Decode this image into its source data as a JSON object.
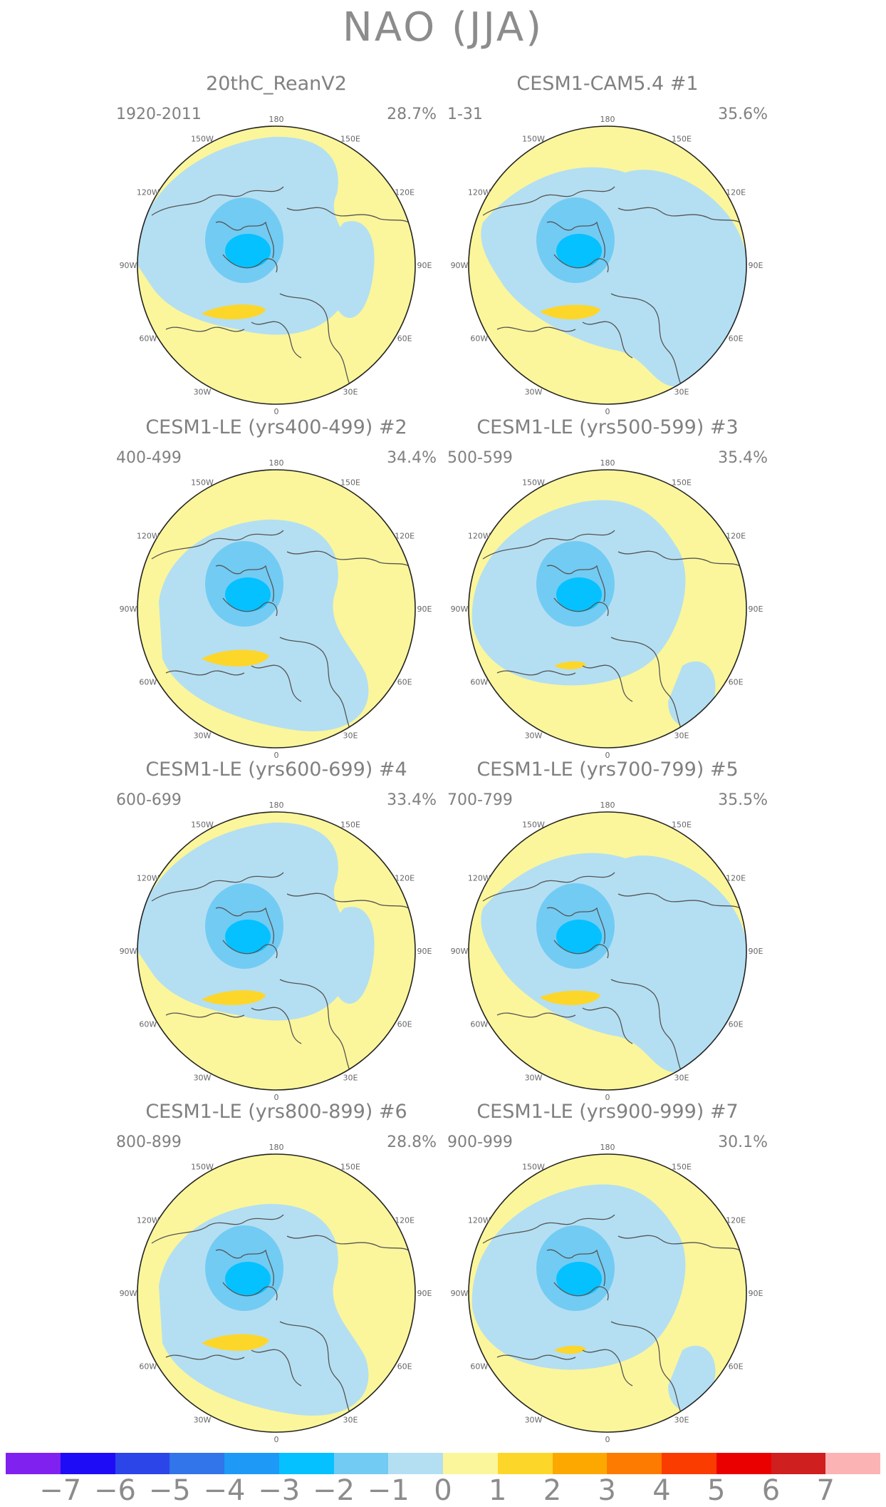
{
  "title": "NAO (JJA)",
  "longitude_labels": [
    "180",
    "150E",
    "120E",
    "90E",
    "60E",
    "30E",
    "0",
    "30W",
    "60W",
    "90W",
    "120W",
    "150W"
  ],
  "panels": [
    {
      "title": "20thC_ReanV2",
      "period": "1920-2011",
      "percent": "28.7%",
      "variant": 0
    },
    {
      "title": "CESM1-CAM5.4         #1",
      "period": "1-31",
      "percent": "35.6%",
      "variant": 1
    },
    {
      "title": "CESM1-LE (yrs400-499) #2",
      "period": "400-499",
      "percent": "34.4%",
      "variant": 2
    },
    {
      "title": "CESM1-LE (yrs500-599) #3",
      "period": "500-599",
      "percent": "35.4%",
      "variant": 3
    },
    {
      "title": "CESM1-LE (yrs600-699) #4",
      "period": "600-699",
      "percent": "33.4%",
      "variant": 0
    },
    {
      "title": "CESM1-LE (yrs700-799) #5",
      "period": "700-799",
      "percent": "35.5%",
      "variant": 1
    },
    {
      "title": "CESM1-LE (yrs800-899) #6",
      "period": "800-899",
      "percent": "28.8%",
      "variant": 2
    },
    {
      "title": "CESM1-LE (yrs900-999) #7",
      "period": "900-999",
      "percent": "30.1%",
      "variant": 3
    }
  ],
  "colorbar": {
    "colors": [
      "#8021f0",
      "#1e0cf6",
      "#2c45e9",
      "#3274ea",
      "#1e9af6",
      "#05c1ff",
      "#72cbf3",
      "#b4dff2",
      "#fbf69b",
      "#fdd62a",
      "#fca800",
      "#fc7b00",
      "#fa3c00",
      "#eb0000",
      "#cf1f1f",
      "#fcb3b3"
    ],
    "labels": [
      "−7",
      "−6",
      "−5",
      "−4",
      "−3",
      "−2",
      "−1",
      "0",
      "1",
      "2",
      "3",
      "4",
      "5",
      "6",
      "7"
    ]
  },
  "palette": {
    "light_blue": "#b4dff2",
    "mid_blue": "#72cbf3",
    "blue": "#05c1ff",
    "yellow": "#fbf69b",
    "orange": "#fdd62a",
    "coast": "#555555"
  }
}
